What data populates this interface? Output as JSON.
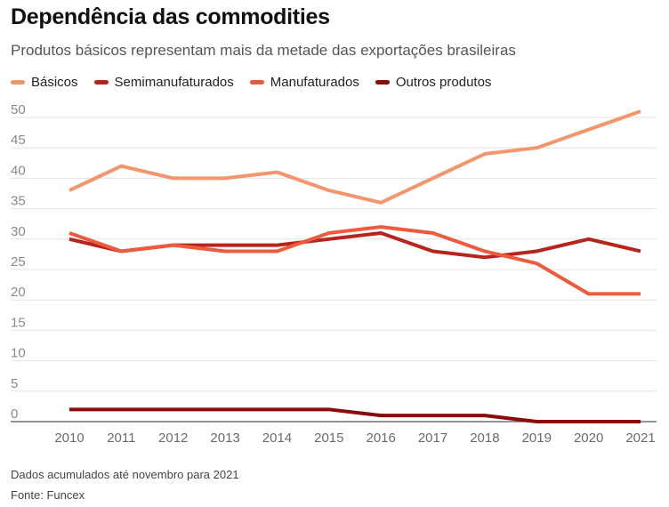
{
  "header": {
    "title": "Dependência das commodities",
    "subtitle": "Produtos básicos representam mais da metade das exportações brasileiras"
  },
  "chart_data": {
    "type": "line",
    "title": "Dependência das commodities",
    "subtitle": "Produtos básicos representam mais da metade das exportações brasileiras",
    "xlabel": "",
    "ylabel": "",
    "x": [
      "2010",
      "2011",
      "2012",
      "2013",
      "2014",
      "2015",
      "2016",
      "2017",
      "2018",
      "2019",
      "2020",
      "2021"
    ],
    "ylim": [
      0,
      50
    ],
    "yticks": [
      0,
      5,
      10,
      15,
      20,
      25,
      30,
      35,
      40,
      45,
      50
    ],
    "grid": true,
    "legend_position": "top-left",
    "series": [
      {
        "name": "Básicos",
        "color": "#F4956B",
        "values": [
          38,
          42,
          40,
          40,
          41,
          38,
          36,
          40,
          44,
          45,
          48,
          51
        ]
      },
      {
        "name": "Semimanufaturados",
        "color": "#B8231B",
        "values": [
          30,
          28,
          29,
          29,
          29,
          30,
          31,
          28,
          27,
          28,
          30,
          28
        ]
      },
      {
        "name": "Manufaturados",
        "color": "#EE5A3C",
        "values": [
          31,
          28,
          29,
          28,
          28,
          31,
          32,
          31,
          28,
          26,
          21,
          21
        ]
      },
      {
        "name": "Outros produtos",
        "color": "#8B0A0A",
        "values": [
          2,
          2,
          2,
          2,
          2,
          2,
          1,
          1,
          1,
          0,
          0,
          0
        ]
      }
    ]
  },
  "footer": {
    "note": "Dados acumulados até novembro para 2021",
    "source": "Fonte: Funcex"
  }
}
